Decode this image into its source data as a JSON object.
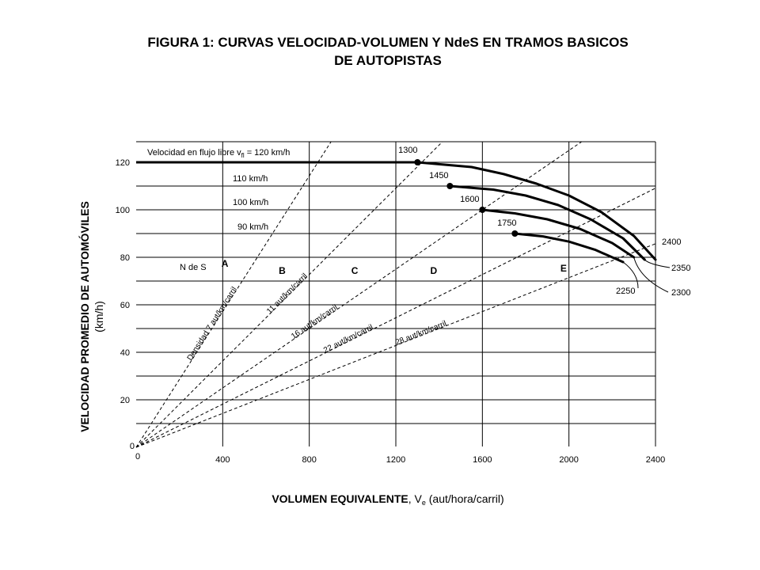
{
  "title_line1": "FIGURA 1: CURVAS VELOCIDAD-VOLUMEN Y NdeS EN TRAMOS BASICOS",
  "title_line2": "DE AUTOPISTAS",
  "xlabel_bold": "VOLUMEN EQUIVALENTE",
  "xlabel_rest": ", V",
  "xlabel_sub": "e",
  "xlabel_unit": " (aut/hora/carril)",
  "ylabel_line1": "VELOCIDAD PROMEDIO DE AUTOMÓVILES",
  "ylabel_line2": "(km/h)",
  "x_origin_label": "0",
  "y_origin_label": "0",
  "los_prefix": "N de S",
  "chart_data": {
    "type": "line",
    "xlim": [
      0,
      2400
    ],
    "ylim": [
      0,
      127
    ],
    "x_ticks": [
      400,
      800,
      1200,
      1600,
      2000,
      2400
    ],
    "y_ticks": [
      20,
      40,
      60,
      80,
      100,
      120
    ],
    "grid": true,
    "series": [
      {
        "name": "Velocidad en flujo libre v",
        "name_sub": "fl",
        "name_suffix": " = 120 km/h",
        "ffs": 120,
        "breakpoint_label": "1300",
        "capacity_label": "2400",
        "points": [
          [
            0,
            120
          ],
          [
            1300,
            120
          ],
          [
            1550,
            118
          ],
          [
            1700,
            115
          ],
          [
            1850,
            111
          ],
          [
            2000,
            106
          ],
          [
            2150,
            99
          ],
          [
            2300,
            89
          ],
          [
            2400,
            79
          ]
        ]
      },
      {
        "name": "110 km/h",
        "ffs": 110,
        "breakpoint_label": "1450",
        "capacity_label": "2350",
        "points": [
          [
            0,
            110
          ],
          [
            1450,
            110
          ],
          [
            1650,
            108.5
          ],
          [
            1800,
            106
          ],
          [
            1950,
            102
          ],
          [
            2100,
            96
          ],
          [
            2250,
            88
          ],
          [
            2350,
            79
          ]
        ]
      },
      {
        "name": "100 km/h",
        "ffs": 100,
        "breakpoint_label": "1600",
        "capacity_label": "2300",
        "points": [
          [
            0,
            100
          ],
          [
            1600,
            100
          ],
          [
            1750,
            98.5
          ],
          [
            1900,
            96
          ],
          [
            2050,
            92
          ],
          [
            2200,
            86
          ],
          [
            2300,
            80
          ]
        ]
      },
      {
        "name": "90 km/h",
        "ffs": 90,
        "breakpoint_label": "1750",
        "capacity_label": "2250",
        "points": [
          [
            0,
            90
          ],
          [
            1750,
            90
          ],
          [
            1880,
            88.8
          ],
          [
            2000,
            86.6
          ],
          [
            2120,
            83.2
          ],
          [
            2250,
            78
          ]
        ]
      }
    ],
    "density_lines": [
      {
        "label": "Densidad 7 aut/km/carril",
        "density": 7,
        "label_at": [
          360,
          51.5
        ]
      },
      {
        "label": "11 aut/km/carril",
        "density": 11,
        "label_at": [
          705,
          64
        ]
      },
      {
        "label": "16 aut/km/carril",
        "density": 16,
        "label_at": [
          830,
          52
        ]
      },
      {
        "label": "22 aut/km/carril",
        "density": 22,
        "label_at": [
          985,
          44.8
        ]
      },
      {
        "label": "28 aut/km/carril",
        "density": 28,
        "label_at": [
          1320,
          47.2
        ]
      }
    ],
    "los_labels": [
      {
        "label": "A",
        "x": 410,
        "y": 76
      },
      {
        "label": "B",
        "x": 675,
        "y": 73
      },
      {
        "label": "C",
        "x": 1010,
        "y": 73
      },
      {
        "label": "D",
        "x": 1375,
        "y": 73
      },
      {
        "label": "E",
        "x": 1975,
        "y": 74
      }
    ]
  }
}
